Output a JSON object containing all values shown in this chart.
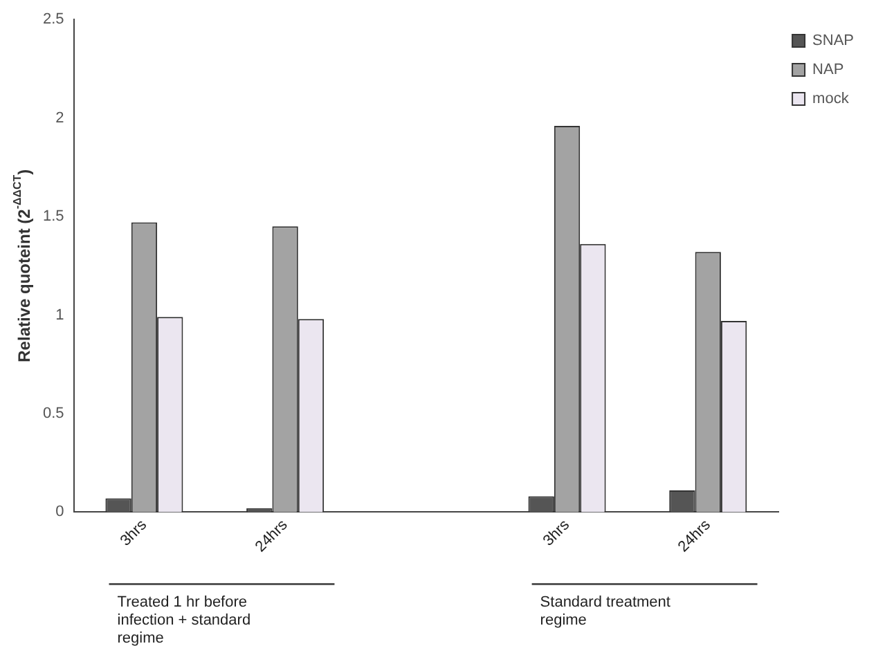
{
  "chart_data": {
    "type": "bar",
    "ylabel": "Relative quoteint (2$^{-ΔΔCT}$)",
    "categories": [
      "3hrs",
      "24hrs",
      null,
      "3hrs",
      "24hrs"
    ],
    "series": [
      {
        "name": "SNAP",
        "color": "#555555",
        "values": [
          0.07,
          0.02,
          null,
          0.08,
          0.11
        ]
      },
      {
        "name": "NAP",
        "color": "#a3a3a3",
        "values": [
          1.47,
          1.45,
          null,
          1.96,
          1.32
        ]
      },
      {
        "name": "mock",
        "color": "#ebe6f0",
        "values": [
          0.99,
          0.98,
          null,
          1.36,
          0.97
        ]
      }
    ],
    "ylim": [
      0,
      2.5
    ],
    "yticks": [
      0,
      0.5,
      1,
      1.5,
      2,
      2.5
    ],
    "grid": false,
    "legend": "right",
    "annotations": [
      "Treated 1 hr before infection + standard regime",
      "Standard treatment regime"
    ]
  }
}
